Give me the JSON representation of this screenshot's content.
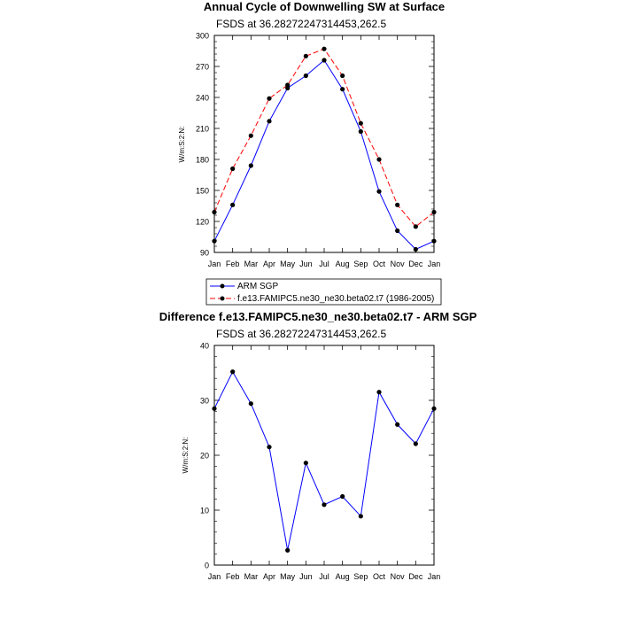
{
  "chart_data": [
    {
      "type": "line",
      "title": "Annual Cycle of Downwelling SW at Surface",
      "subtitle": "FSDS at 36.28272247314453,262.5",
      "ylabel": "W/m:S:2:N:",
      "categories": [
        "Jan",
        "Feb",
        "Mar",
        "Apr",
        "May",
        "Jun",
        "Jul",
        "Aug",
        "Sep",
        "Oct",
        "Nov",
        "Dec",
        "Jan"
      ],
      "ylim": [
        90,
        300
      ],
      "yticks": [
        90,
        120,
        150,
        180,
        210,
        240,
        270,
        300
      ],
      "series": [
        {
          "name": "ARM SGP",
          "color": "#0000ff",
          "dash": "solid",
          "values": [
            101,
            136,
            174,
            217,
            249,
            261,
            276,
            248,
            207,
            149,
            111,
            93,
            101
          ]
        },
        {
          "name": "f.e13.FAMIPC5.ne30_ne30.beta02.t7 (1986-2005)",
          "color": "#ff0000",
          "dash": "dashed",
          "values": [
            129,
            171,
            203,
            239,
            252,
            280,
            287,
            261,
            215,
            180,
            136,
            115,
            129
          ]
        }
      ],
      "legend_position": "below"
    },
    {
      "type": "line",
      "title": "Difference f.e13.FAMIPC5.ne30_ne30.beta02.t7 - ARM SGP",
      "subtitle": "FSDS at 36.28272247314453,262.5",
      "ylabel": "W/m:S:2:N:",
      "categories": [
        "Jan",
        "Feb",
        "Mar",
        "Apr",
        "May",
        "Jun",
        "Jul",
        "Aug",
        "Sep",
        "Oct",
        "Nov",
        "Dec",
        "Jan"
      ],
      "ylim": [
        0,
        40
      ],
      "yticks": [
        0,
        10,
        20,
        30,
        40
      ],
      "series": [
        {
          "color": "#0000ff",
          "dash": "solid",
          "values": [
            28.5,
            35.2,
            29.4,
            21.5,
            2.7,
            18.6,
            11.0,
            12.5,
            8.9,
            31.5,
            25.6,
            22.1,
            28.5
          ]
        }
      ]
    }
  ]
}
